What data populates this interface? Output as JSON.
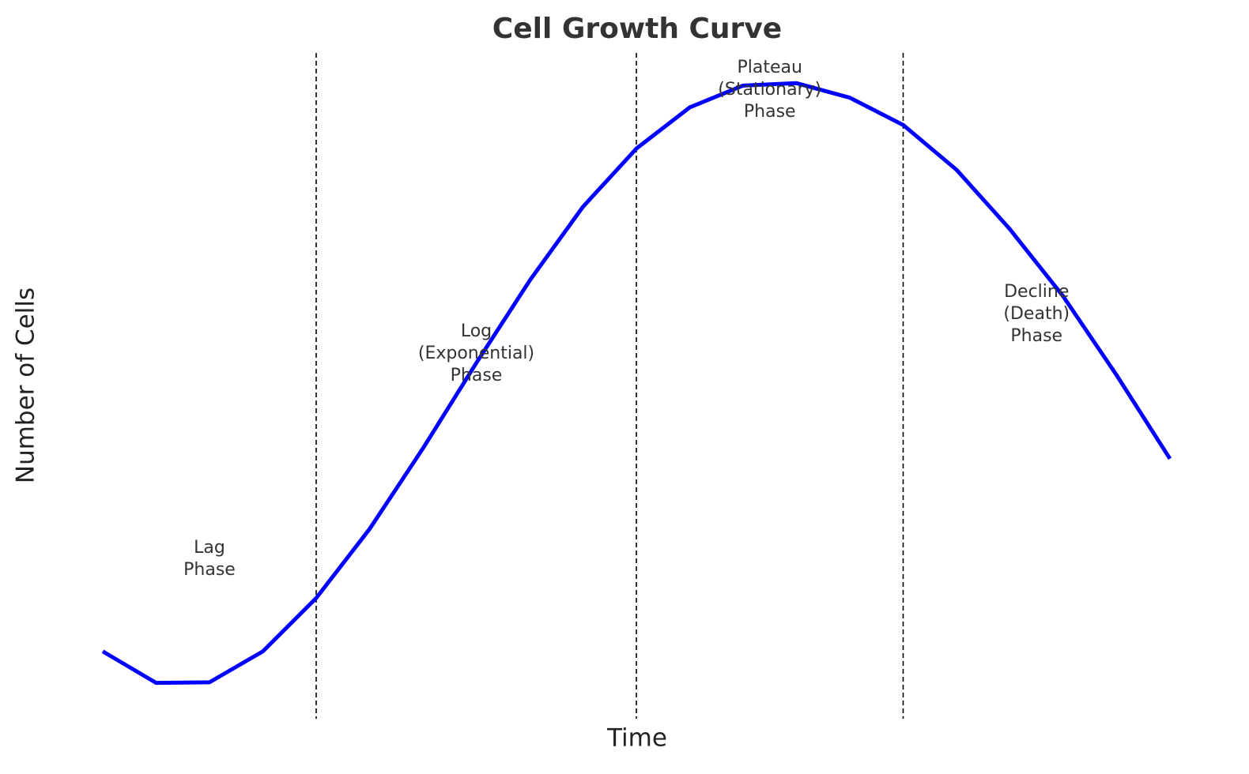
{
  "chart_data": {
    "type": "line",
    "title": "Cell Growth Curve",
    "x_label": "Time",
    "y_label": "Number of Cells",
    "x": [
      0,
      0.5,
      1,
      1.5,
      2,
      2.5,
      3,
      3.5,
      4,
      4.5,
      5,
      5.5,
      6,
      6.5,
      7,
      7.5,
      8,
      8.5,
      9,
      9.5,
      10
    ],
    "values": [
      5.9,
      0.7,
      0.8,
      5.9,
      14.7,
      26.1,
      39.4,
      53.5,
      67.1,
      79.3,
      88.9,
      95.7,
      99.3,
      99.7,
      97.3,
      92.8,
      85.4,
      75.6,
      64.5,
      51.5,
      37.7
    ],
    "color": "#0000ff",
    "xlim": [
      0,
      10
    ],
    "ylim": [
      0,
      100
    ],
    "phase_boundaries": [
      2,
      5,
      7.5
    ],
    "phase_labels": [
      "Lag\nPhase",
      "Log\n(Exponential)\nPhase",
      "Plateau\n(Stationary)\nPhase",
      "Decline\n(Death)\nPhase"
    ]
  }
}
